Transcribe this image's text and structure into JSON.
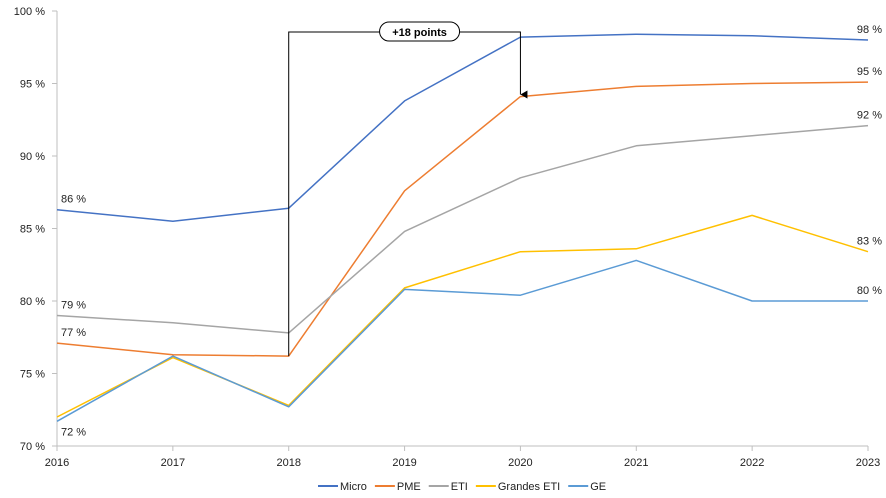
{
  "chart_data": {
    "type": "line",
    "x": [
      "2016",
      "2017",
      "2018",
      "2019",
      "2020",
      "2021",
      "2022",
      "2023"
    ],
    "ylim": [
      70,
      100
    ],
    "yticks": [
      70,
      75,
      80,
      85,
      90,
      95,
      100
    ],
    "ytick_labels": [
      "70 %",
      "75 %",
      "80 %",
      "85 %",
      "90 %",
      "95 %",
      "100 %"
    ],
    "grid": false,
    "legend": "bottom",
    "series": [
      {
        "name": "Micro",
        "color": "#4472C4",
        "values": [
          86.3,
          85.5,
          86.4,
          93.8,
          98.2,
          98.4,
          98.3,
          98.0
        ]
      },
      {
        "name": "PME",
        "color": "#ED7D31",
        "values": [
          77.1,
          76.3,
          76.2,
          87.6,
          94.1,
          94.8,
          95.0,
          95.1
        ]
      },
      {
        "name": "ETI",
        "color": "#A5A5A5",
        "values": [
          79.0,
          78.5,
          77.8,
          84.8,
          88.5,
          90.7,
          91.4,
          92.1
        ]
      },
      {
        "name": "Grandes ETI",
        "color": "#FFC000",
        "values": [
          72.0,
          76.1,
          72.8,
          80.9,
          83.4,
          83.6,
          85.9,
          83.4
        ]
      },
      {
        "name": "GE",
        "color": "#5B9BD5",
        "values": [
          71.7,
          76.2,
          72.7,
          80.8,
          80.4,
          82.8,
          80.0,
          80.0
        ]
      }
    ],
    "data_labels": [
      {
        "series": 0,
        "index": 0,
        "text": "86 %"
      },
      {
        "series": 2,
        "index": 0,
        "text": "79 %"
      },
      {
        "series": 1,
        "index": 0,
        "text": "77 %"
      },
      {
        "series": 4,
        "index": 0,
        "text": "72 %"
      },
      {
        "series": 0,
        "index": 7,
        "text": "98 %"
      },
      {
        "series": 1,
        "index": 7,
        "text": "95 %"
      },
      {
        "series": 2,
        "index": 7,
        "text": "92 %"
      },
      {
        "series": 3,
        "index": 7,
        "text": "83 %"
      },
      {
        "series": 4,
        "index": 7,
        "text": "80 %"
      }
    ],
    "annotations": [
      {
        "text": "+18 points",
        "from": {
          "x": "2018",
          "y": 76.2
        },
        "to": {
          "x": "2020",
          "y": 94.1
        }
      }
    ]
  }
}
